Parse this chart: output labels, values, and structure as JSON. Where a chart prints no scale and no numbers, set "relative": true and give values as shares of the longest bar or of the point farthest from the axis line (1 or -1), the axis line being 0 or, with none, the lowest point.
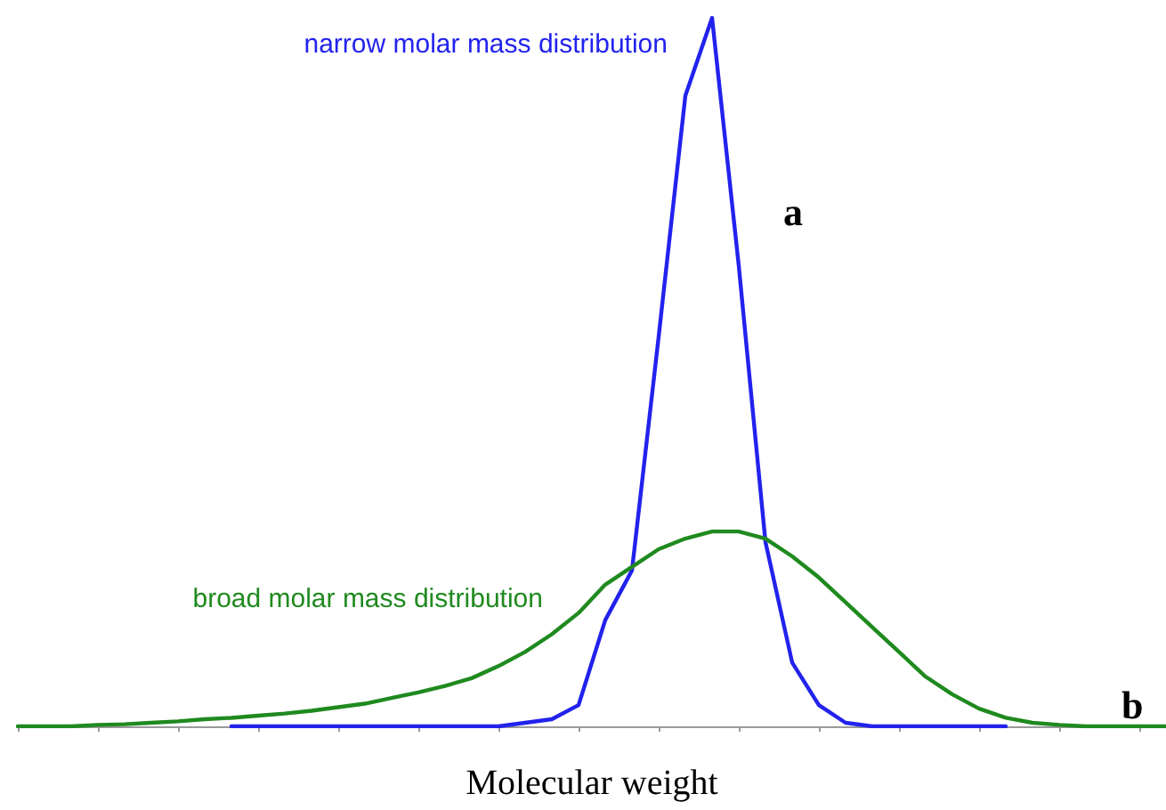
{
  "chart_data": {
    "type": "line",
    "relative": true,
    "xlabel": "Molecular weight",
    "categories": [
      null,
      null,
      null,
      null,
      null,
      null,
      null,
      null,
      null,
      null,
      null,
      null,
      null,
      null,
      null,
      null,
      null,
      null,
      null,
      null,
      null,
      null,
      null,
      null,
      null,
      null,
      null,
      null,
      null,
      null,
      null,
      null,
      null,
      null,
      null,
      null,
      null,
      null,
      null,
      null,
      null,
      null,
      null,
      null
    ],
    "series": [
      {
        "name": "narrow molar mass distribution",
        "color": "#2222ee",
        "values": [
          null,
          null,
          null,
          null,
          null,
          null,
          null,
          null,
          0,
          0,
          0,
          0,
          0,
          0,
          0,
          0,
          0,
          0,
          0,
          0.005,
          0.01,
          0.03,
          0.15,
          0.22,
          0.55,
          0.89,
          1.0,
          0.65,
          0.26,
          0.09,
          0.03,
          0.005,
          0,
          0,
          0,
          0,
          0,
          0,
          null,
          null,
          null,
          null,
          null,
          null
        ]
      },
      {
        "name": "broad molar mass distribution",
        "color": "#1f8a1f",
        "values": [
          0,
          0,
          0,
          0.002,
          0.003,
          0.005,
          0.007,
          0.01,
          0.012,
          0.015,
          0.018,
          0.022,
          0.027,
          0.032,
          0.04,
          0.048,
          0.057,
          0.068,
          0.085,
          0.105,
          0.13,
          0.16,
          0.2,
          0.225,
          0.25,
          0.265,
          0.275,
          0.275,
          0.265,
          0.24,
          0.21,
          0.175,
          0.14,
          0.105,
          0.07,
          0.045,
          0.025,
          0.012,
          0.005,
          0.002,
          0,
          0,
          0,
          0
        ]
      }
    ],
    "annotations": [
      "a",
      "b"
    ],
    "legend": false,
    "grid": false,
    "marker": "none",
    "line_style": "solid",
    "tick_labels": false
  }
}
